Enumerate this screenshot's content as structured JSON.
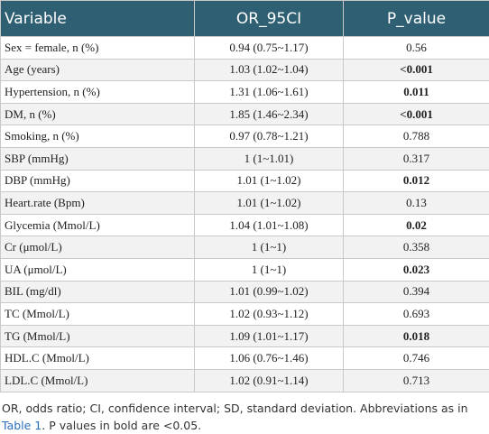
{
  "table": {
    "header": [
      "Variable",
      "OR_95CI",
      "P_value"
    ],
    "rows": [
      [
        "Sex = female, n (%)",
        "0.94 (0.75~1.17)",
        "0.56"
      ],
      [
        "Age (years)",
        "1.03 (1.02~1.04)",
        "<0.001"
      ],
      [
        "Hypertension, n (%)",
        "1.31 (1.06~1.61)",
        "0.011"
      ],
      [
        "DM, n (%)",
        "1.85 (1.46~2.34)",
        "<0.001"
      ],
      [
        "Smoking, n (%)",
        "0.97 (0.78~1.21)",
        "0.788"
      ],
      [
        "SBP (mmHg)",
        "1 (1~1.01)",
        "0.317"
      ],
      [
        "DBP (mmHg)",
        "1.01 (1~1.02)",
        "0.012"
      ],
      [
        "Heart.rate (Bpm)",
        "1.01 (1~1.02)",
        "0.13"
      ],
      [
        "Glycemia (Mmol/L)",
        "1.04 (1.01~1.08)",
        "0.02"
      ],
      [
        "Cr (μmol/L)",
        "1 (1~1)",
        "0.358"
      ],
      [
        "UA (μmol/L)",
        "1 (1~1)",
        "0.023"
      ],
      [
        "BIL (mg/dl)",
        "1.01 (0.99~1.02)",
        "0.394"
      ],
      [
        "TC (Mmol/L)",
        "1.02 (0.93~1.12)",
        "0.693"
      ],
      [
        "TG (Mmol/L)",
        "1.09 (1.01~1.17)",
        "0.018"
      ],
      [
        "HDL.C (Mmol/L)",
        "1.06 (0.76~1.46)",
        "0.746"
      ],
      [
        "LDL.C (Mmol/L)",
        "1.02 (0.91~1.14)",
        "0.713"
      ]
    ],
    "bold": [
      false,
      true,
      true,
      true,
      false,
      false,
      true,
      false,
      true,
      false,
      true,
      false,
      false,
      true,
      false,
      false
    ]
  },
  "footnote": {
    "text": "OR, odds ratio; CI, confidence interval; SD, standard deviation. Abbreviations as in",
    "link": "Table 1",
    "after": ". P values in bold are <0.05."
  }
}
